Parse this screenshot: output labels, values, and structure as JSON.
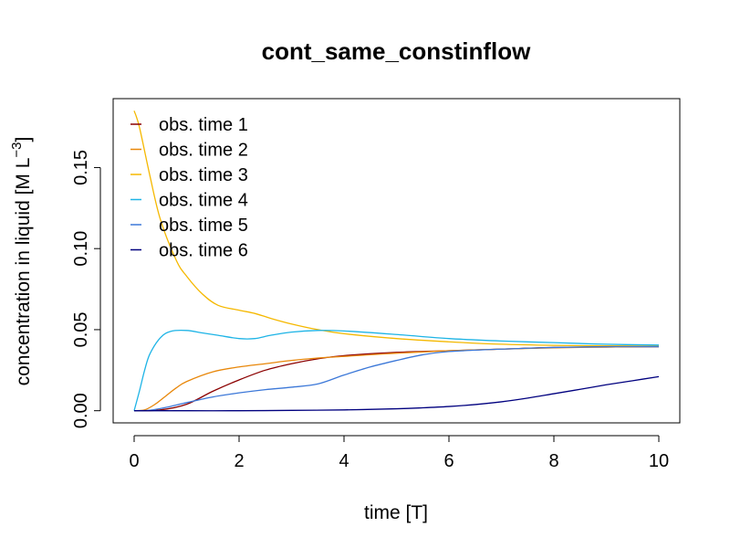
{
  "chart_data": {
    "type": "line",
    "title": "cont_same_constinflow",
    "xlabel": "time [T]",
    "ylabel_main": "concentration in liquid [M L",
    "ylabel_sup": "−3",
    "ylabel_end": "]",
    "xlim": [
      -0.4,
      10.4
    ],
    "ylim": [
      -0.0075,
      0.1925
    ],
    "x_ticks": [
      0,
      2,
      4,
      6,
      8,
      10
    ],
    "x_tick_labels": [
      "0",
      "2",
      "4",
      "6",
      "8",
      "10"
    ],
    "y_ticks": [
      0.0,
      0.05,
      0.1,
      0.15
    ],
    "y_tick_labels": [
      "0.00",
      "0.05",
      "0.10",
      "0.15"
    ],
    "grid": false,
    "legend_position": "top-left",
    "series": [
      {
        "name": "obs. time  1",
        "color": "#8B0000",
        "x": [
          0,
          0.5,
          1,
          1.5,
          2,
          2.5,
          3,
          3.5,
          4,
          5,
          6,
          7,
          8,
          9,
          10
        ],
        "y": [
          0,
          0.0005,
          0.004,
          0.012,
          0.019,
          0.025,
          0.029,
          0.032,
          0.034,
          0.036,
          0.037,
          0.038,
          0.039,
          0.0393,
          0.0395
        ]
      },
      {
        "name": "obs. time  2",
        "color": "#E8870A",
        "x": [
          0,
          0.2,
          0.4,
          0.6,
          0.8,
          1,
          1.5,
          2,
          2.5,
          3,
          3.5,
          4,
          5,
          6,
          7,
          8,
          9,
          10
        ],
        "y": [
          0,
          0.0005,
          0.004,
          0.009,
          0.014,
          0.018,
          0.024,
          0.027,
          0.029,
          0.031,
          0.0325,
          0.0335,
          0.0355,
          0.037,
          0.038,
          0.0388,
          0.0393,
          0.0395
        ]
      },
      {
        "name": "obs. time  3",
        "color": "#F5B800",
        "x": [
          0,
          0.1,
          0.3,
          0.5,
          0.8,
          1,
          1.3,
          1.6,
          2,
          2.3,
          2.6,
          3,
          3.5,
          4,
          5,
          6,
          7,
          8,
          9,
          10
        ],
        "y": [
          0.185,
          0.175,
          0.145,
          0.118,
          0.093,
          0.083,
          0.072,
          0.065,
          0.062,
          0.06,
          0.057,
          0.0535,
          0.05,
          0.0475,
          0.0445,
          0.0425,
          0.041,
          0.0403,
          0.04,
          0.0398
        ]
      },
      {
        "name": "obs. time  4",
        "color": "#1EB4E6",
        "x": [
          0,
          0.1,
          0.2,
          0.3,
          0.5,
          0.7,
          1,
          1.3,
          1.6,
          2,
          2.3,
          2.6,
          3,
          3.5,
          4,
          5,
          6,
          7,
          8,
          9,
          10
        ],
        "y": [
          0,
          0.012,
          0.025,
          0.035,
          0.045,
          0.049,
          0.0495,
          0.048,
          0.0465,
          0.0445,
          0.0445,
          0.0465,
          0.0485,
          0.0495,
          0.0492,
          0.047,
          0.0445,
          0.043,
          0.042,
          0.041,
          0.0405
        ]
      },
      {
        "name": "obs. time  5",
        "color": "#3C78D8",
        "x": [
          0,
          0.3,
          0.6,
          1,
          1.5,
          2,
          2.5,
          3,
          3.5,
          4,
          4.5,
          5,
          5.5,
          6,
          7,
          8,
          9,
          10
        ],
        "y": [
          0,
          0.0003,
          0.002,
          0.005,
          0.0085,
          0.011,
          0.013,
          0.0145,
          0.0165,
          0.022,
          0.027,
          0.031,
          0.0345,
          0.0365,
          0.038,
          0.039,
          0.0395,
          0.0395
        ]
      },
      {
        "name": "obs. time  6",
        "color": "#00007F",
        "x": [
          0,
          1,
          2,
          3,
          4,
          5,
          5.5,
          6,
          6.5,
          7,
          7.5,
          8,
          8.5,
          9,
          9.5,
          10
        ],
        "y": [
          0,
          0,
          0,
          0.0002,
          0.0005,
          0.0012,
          0.0018,
          0.0026,
          0.0038,
          0.0055,
          0.0078,
          0.0105,
          0.0132,
          0.016,
          0.0185,
          0.021
        ]
      }
    ]
  }
}
